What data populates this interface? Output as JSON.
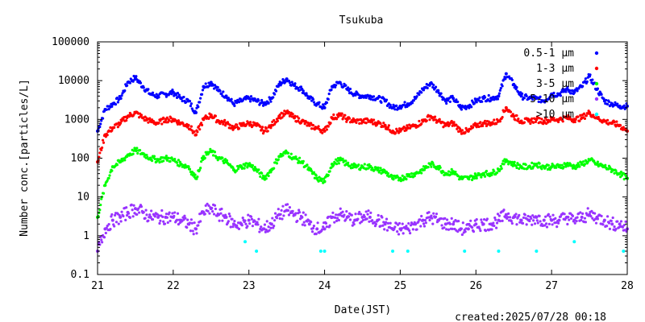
{
  "chart_data": {
    "type": "scatter",
    "title": "Tsukuba",
    "xlabel": "Date(JST)",
    "ylabel": "Number conc.[particles/L]",
    "y_scale": "log",
    "ylim": [
      0.1,
      100000
    ],
    "xlim": [
      21,
      28
    ],
    "x_ticks": [
      "21",
      "22",
      "23",
      "24",
      "25",
      "26",
      "27",
      "28"
    ],
    "y_ticks": [
      "0.1",
      "1",
      "10",
      "100",
      "1000",
      "10000",
      "100000"
    ],
    "legend_position": "top-right",
    "grid": false,
    "created": "created:2025/07/28 00:18",
    "series": [
      {
        "name": "0.5-1 μm",
        "color": "#0000ff",
        "x": [
          21.0,
          21.1,
          21.2,
          21.3,
          21.4,
          21.5,
          21.6,
          21.7,
          21.8,
          21.9,
          22.0,
          22.1,
          22.2,
          22.3,
          22.4,
          22.5,
          22.6,
          22.7,
          22.8,
          22.9,
          23.0,
          23.1,
          23.2,
          23.3,
          23.4,
          23.5,
          23.6,
          23.7,
          23.8,
          23.9,
          24.0,
          24.1,
          24.2,
          24.3,
          24.4,
          24.5,
          24.6,
          24.7,
          24.8,
          24.9,
          25.0,
          25.1,
          25.2,
          25.3,
          25.4,
          25.5,
          25.6,
          25.7,
          25.8,
          25.9,
          26.0,
          26.1,
          26.2,
          26.3,
          26.4,
          26.5,
          26.6,
          26.7,
          26.8,
          26.9,
          27.0,
          27.1,
          27.2,
          27.3,
          27.4,
          27.5,
          27.6,
          27.7,
          27.8,
          27.9,
          28.0
        ],
        "y": [
          500,
          1800,
          2500,
          3500,
          9000,
          12000,
          7000,
          4500,
          4000,
          4500,
          5000,
          3500,
          3000,
          1500,
          7000,
          9000,
          5500,
          4000,
          2500,
          3000,
          3500,
          3000,
          2500,
          3500,
          8000,
          11000,
          7500,
          6000,
          3500,
          2500,
          2000,
          7000,
          9000,
          6000,
          4500,
          4000,
          4000,
          3500,
          3000,
          2000,
          2200,
          2500,
          3500,
          6000,
          8500,
          5500,
          3000,
          3500,
          2000,
          2200,
          3000,
          3500,
          3500,
          4000,
          15000,
          8000,
          4000,
          3500,
          3500,
          3000,
          4500,
          4500,
          6000,
          5000,
          7000,
          13000,
          6000,
          3000,
          2500,
          2200,
          2200
        ]
      },
      {
        "name": "1-3 μm",
        "color": "#ff0000",
        "x": [
          21.0,
          21.1,
          21.2,
          21.3,
          21.4,
          21.5,
          21.6,
          21.7,
          21.8,
          21.9,
          22.0,
          22.1,
          22.2,
          22.3,
          22.4,
          22.5,
          22.6,
          22.7,
          22.8,
          22.9,
          23.0,
          23.1,
          23.2,
          23.3,
          23.4,
          23.5,
          23.6,
          23.7,
          23.8,
          23.9,
          24.0,
          24.1,
          24.2,
          24.3,
          24.4,
          24.5,
          24.6,
          24.7,
          24.8,
          24.9,
          25.0,
          25.1,
          25.2,
          25.3,
          25.4,
          25.5,
          25.6,
          25.7,
          25.8,
          25.9,
          26.0,
          26.1,
          26.2,
          26.3,
          26.4,
          26.5,
          26.6,
          26.7,
          26.8,
          26.9,
          27.0,
          27.1,
          27.2,
          27.3,
          27.4,
          27.5,
          27.6,
          27.7,
          27.8,
          27.9,
          28.0
        ],
        "y": [
          80,
          400,
          600,
          800,
          1200,
          1500,
          1100,
          900,
          800,
          1000,
          1000,
          800,
          700,
          400,
          1000,
          1300,
          900,
          800,
          600,
          700,
          800,
          700,
          500,
          700,
          1200,
          1500,
          1100,
          900,
          700,
          600,
          500,
          1100,
          1300,
          1000,
          900,
          900,
          900,
          800,
          700,
          500,
          500,
          600,
          700,
          900,
          1200,
          900,
          700,
          800,
          500,
          500,
          700,
          800,
          800,
          900,
          2000,
          1200,
          900,
          900,
          1000,
          900,
          1000,
          1000,
          1100,
          1000,
          1100,
          1500,
          1100,
          900,
          800,
          700,
          500
        ]
      },
      {
        "name": "3-5 μm",
        "color": "#00ff00",
        "x": [
          21.0,
          21.1,
          21.2,
          21.3,
          21.4,
          21.5,
          21.6,
          21.7,
          21.8,
          21.9,
          22.0,
          22.1,
          22.2,
          22.3,
          22.4,
          22.5,
          22.6,
          22.7,
          22.8,
          22.9,
          23.0,
          23.1,
          23.2,
          23.3,
          23.4,
          23.5,
          23.6,
          23.7,
          23.8,
          23.9,
          24.0,
          24.1,
          24.2,
          24.3,
          24.4,
          24.5,
          24.6,
          24.7,
          24.8,
          24.9,
          25.0,
          25.1,
          25.2,
          25.3,
          25.4,
          25.5,
          25.6,
          25.7,
          25.8,
          25.9,
          26.0,
          26.1,
          26.2,
          26.3,
          26.4,
          26.5,
          26.6,
          26.7,
          26.8,
          26.9,
          27.0,
          27.1,
          27.2,
          27.3,
          27.4,
          27.5,
          27.6,
          27.7,
          27.8,
          27.9,
          28.0
        ],
        "y": [
          3,
          20,
          60,
          80,
          120,
          160,
          130,
          100,
          90,
          100,
          90,
          70,
          60,
          30,
          110,
          150,
          100,
          80,
          50,
          60,
          70,
          50,
          30,
          50,
          110,
          140,
          100,
          80,
          50,
          30,
          25,
          70,
          90,
          70,
          60,
          60,
          60,
          50,
          45,
          30,
          30,
          35,
          40,
          50,
          70,
          60,
          40,
          45,
          30,
          30,
          35,
          40,
          40,
          50,
          90,
          70,
          60,
          60,
          70,
          60,
          60,
          60,
          70,
          60,
          70,
          90,
          70,
          60,
          50,
          40,
          30
        ]
      },
      {
        "name": "5-10 μm",
        "color": "#9933ff",
        "x": [
          21.0,
          21.1,
          21.2,
          21.3,
          21.4,
          21.5,
          21.6,
          21.7,
          21.8,
          21.9,
          22.0,
          22.1,
          22.2,
          22.3,
          22.4,
          22.5,
          22.6,
          22.7,
          22.8,
          22.9,
          23.0,
          23.1,
          23.2,
          23.3,
          23.4,
          23.5,
          23.6,
          23.7,
          23.8,
          23.9,
          24.0,
          24.1,
          24.2,
          24.3,
          24.4,
          24.5,
          24.6,
          24.7,
          24.8,
          24.9,
          25.0,
          25.1,
          25.2,
          25.3,
          25.4,
          25.5,
          25.6,
          25.7,
          25.8,
          25.9,
          26.0,
          26.1,
          26.2,
          26.3,
          26.4,
          26.5,
          26.6,
          26.7,
          26.8,
          26.9,
          27.0,
          27.1,
          27.2,
          27.3,
          27.4,
          27.5,
          27.6,
          27.7,
          27.8,
          27.9,
          28.0
        ],
        "y": [
          0.4,
          1.5,
          2.5,
          3,
          4,
          5,
          4,
          3,
          3,
          3,
          3,
          2.5,
          2,
          1.5,
          4,
          5,
          3.5,
          3,
          2,
          2,
          2.5,
          2,
          1.5,
          2,
          3.5,
          4.5,
          3.5,
          3,
          2,
          1.5,
          1.5,
          3,
          3.5,
          3,
          2.5,
          3,
          3,
          2.5,
          2,
          1.5,
          1.5,
          1.5,
          2,
          2.5,
          3,
          2.5,
          2,
          2,
          1.5,
          1.5,
          2,
          2,
          2,
          2.5,
          3.5,
          3,
          2.5,
          2.5,
          3,
          2.5,
          2.5,
          2.5,
          3,
          2.5,
          3,
          3.5,
          3,
          2.5,
          2,
          2,
          1.5
        ]
      },
      {
        "name": ">10 μm",
        "color": "#00ffff",
        "x": [
          22.95,
          23.1,
          23.95,
          24.0,
          24.9,
          25.1,
          25.85,
          26.3,
          26.8,
          27.3,
          27.95
        ],
        "y": [
          0.7,
          0.4,
          0.4,
          0.4,
          0.4,
          0.4,
          0.4,
          0.4,
          0.4,
          0.7,
          0.4
        ]
      }
    ]
  }
}
